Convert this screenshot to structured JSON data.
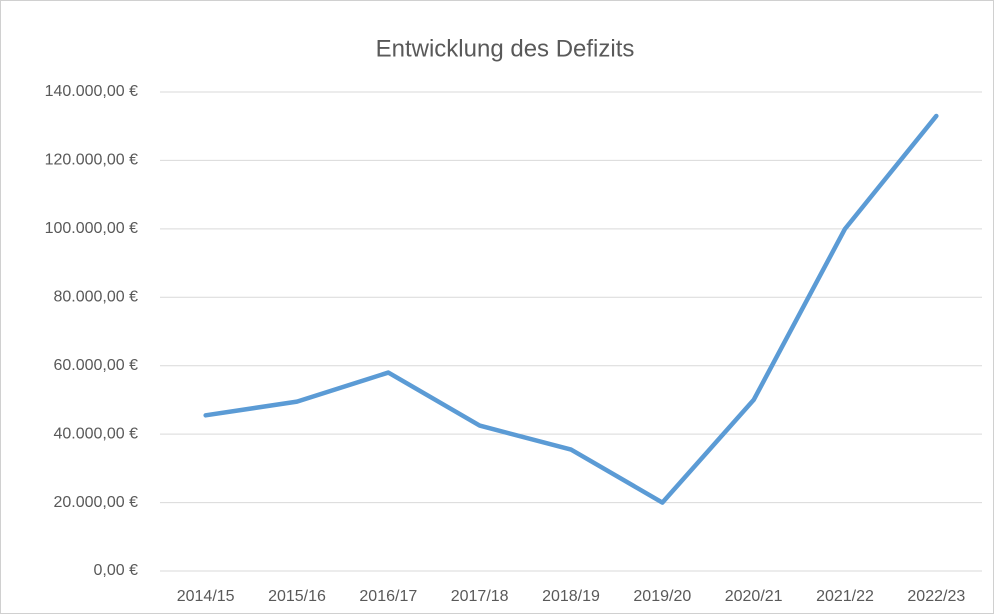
{
  "chart_data": {
    "type": "line",
    "title": "Entwicklung des Defizits",
    "categories": [
      "2014/15",
      "2015/16",
      "2016/17",
      "2017/18",
      "2018/19",
      "2019/20",
      "2020/21",
      "2021/22",
      "2022/23"
    ],
    "series": [
      {
        "color": "#5b9bd5",
        "values": [
          45500,
          49500,
          58000,
          42500,
          35500,
          20000,
          50000,
          100000,
          133000
        ]
      }
    ],
    "ylim": [
      0,
      140000
    ],
    "yticks": [
      {
        "value": 0,
        "label": "0,00 €"
      },
      {
        "value": 20000,
        "label": "20.000,00 €"
      },
      {
        "value": 40000,
        "label": "40.000,00 €"
      },
      {
        "value": 60000,
        "label": "60.000,00 €"
      },
      {
        "value": 80000,
        "label": "80.000,00 €"
      },
      {
        "value": 100000,
        "label": "100.000,00 €"
      },
      {
        "value": 120000,
        "label": "120.000,00 €"
      },
      {
        "value": 140000,
        "label": "140.000,00 €"
      }
    ],
    "grid": true
  }
}
